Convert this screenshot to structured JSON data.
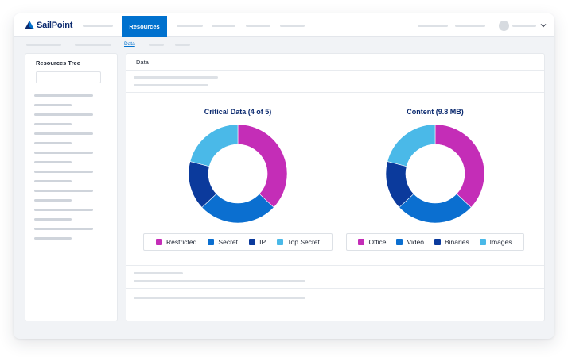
{
  "brand": {
    "name": "SailPoint"
  },
  "topnav": {
    "active_tab": "Resources"
  },
  "subnav": {
    "active_link": "Data"
  },
  "left_panel": {
    "title": "Resources Tree"
  },
  "main_panel": {
    "title": "Data"
  },
  "charts": [
    {
      "title": "Critical Data (4 of 5)",
      "segments": [
        {
          "label": "Restricted",
          "value": 37,
          "color": "#c42db7"
        },
        {
          "label": "Secret",
          "value": 26,
          "color": "#0b6fd0"
        },
        {
          "label": "IP",
          "value": 16,
          "color": "#0b3a9c"
        },
        {
          "label": "Top Secret",
          "value": 21,
          "color": "#4ab9e8"
        }
      ]
    },
    {
      "title": "Content (9.8 MB)",
      "segments": [
        {
          "label": "Office",
          "value": 37,
          "color": "#c42db7"
        },
        {
          "label": "Video",
          "value": 26,
          "color": "#0b6fd0"
        },
        {
          "label": "Binaries",
          "value": 16,
          "color": "#0b3a9c"
        },
        {
          "label": "Images",
          "value": 21,
          "color": "#4ab9e8"
        }
      ]
    }
  ]
}
